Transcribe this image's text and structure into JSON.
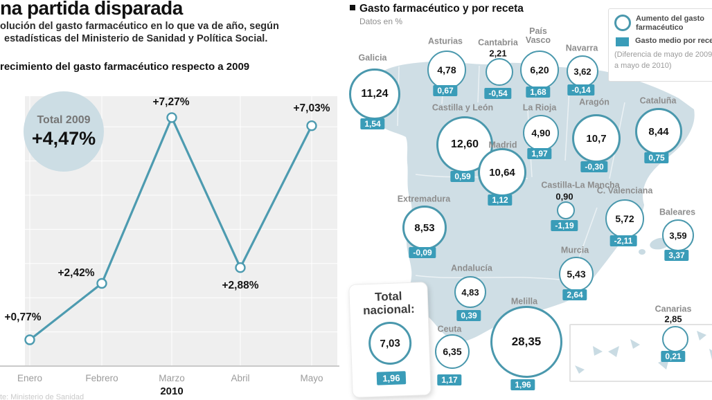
{
  "header": {
    "title": "na partida disparada",
    "subtitle_line1": "olución del gasto farmacéutico en lo que va de año, según",
    "subtitle_line2": "estadísticas del Ministerio de Sanidad y Política Social."
  },
  "line_chart": {
    "heading": "recimiento del gasto farmacéutico respecto a 2009",
    "total_circle": {
      "label": "Total 2009",
      "value": "+4,47%"
    },
    "point_labels": [
      "+0,77%",
      "+2,42%",
      "+7,27%",
      "+2,88%",
      "+7,03%"
    ],
    "year": "2010",
    "source_partial": "te: Ministerio de Sanidad"
  },
  "map": {
    "heading": "Gasto farmacéutico y por receta",
    "subheading": "Datos en %",
    "legend": {
      "item_circle": "Aumento del gasto farmacéutico",
      "item_square": "Gasto medio por receta",
      "note_line1": "(Diferencia de mayo de 2009",
      "note_line2": "a mayo de 2010)"
    },
    "total_box": {
      "label": "Total nacional:",
      "value": "7,03",
      "badge": "1,96"
    },
    "regions": [
      {
        "key": "galicia",
        "name": "Galicia",
        "value": "11,24",
        "badge": "1,54"
      },
      {
        "key": "asturias",
        "name": "Asturias",
        "value": "4,78",
        "badge": "0,67"
      },
      {
        "key": "cantabria",
        "name": "Cantabria",
        "value": "2,21",
        "badge": "-0,54",
        "value_above": true
      },
      {
        "key": "pais-vasco",
        "name": "País\nVasco",
        "value": "6,20",
        "badge": "1,68"
      },
      {
        "key": "navarra",
        "name": "Navarra",
        "value": "3,62",
        "badge": "-0,14"
      },
      {
        "key": "la-rioja",
        "name": "La Rioja",
        "value": "4,90",
        "badge": "1,97"
      },
      {
        "key": "aragon",
        "name": "Aragón",
        "value": "10,7",
        "badge": "-0,30"
      },
      {
        "key": "cataluna",
        "name": "Cataluña",
        "value": "8,44",
        "badge": "0,75"
      },
      {
        "key": "castilla-y-leon",
        "name": "Castilla y León",
        "value": "12,60",
        "badge": "0,59"
      },
      {
        "key": "madrid",
        "name": "Madrid",
        "value": "10,64",
        "badge": "1,12"
      },
      {
        "key": "castilla-la-mancha",
        "name": "Castilla-La Mancha",
        "value": "0,90",
        "badge": "-1,19",
        "value_above": true
      },
      {
        "key": "extremadura",
        "name": "Extremadura",
        "value": "8,53",
        "badge": "-0,09"
      },
      {
        "key": "c-valenciana",
        "name": "C. Valenciana",
        "value": "5,72",
        "badge": "-2,11"
      },
      {
        "key": "baleares",
        "name": "Baleares",
        "value": "3,59",
        "badge": "3,37"
      },
      {
        "key": "murcia",
        "name": "Murcia",
        "value": "5,43",
        "badge": "2,64"
      },
      {
        "key": "andalucia",
        "name": "Andalucía",
        "value": "4,83",
        "badge": "0,39"
      },
      {
        "key": "ceuta",
        "name": "Ceuta",
        "value": "6,35",
        "badge": "1,17"
      },
      {
        "key": "melilla",
        "name": "Melilla",
        "value": "28,35",
        "badge": "1,96"
      },
      {
        "key": "canarias",
        "name": "Canarias",
        "value": "2,85",
        "badge": "0,21",
        "value_above": true
      }
    ]
  },
  "chart_data": [
    {
      "type": "line",
      "title": "Crecimiento del gasto farmacéutico respecto a 2009",
      "x": [
        "Enero",
        "Febrero",
        "Marzo",
        "Abril",
        "Mayo"
      ],
      "values": [
        0.77,
        2.42,
        7.27,
        2.88,
        7.03
      ],
      "unit": "%",
      "xlabel": "2010",
      "ylim": [
        0,
        8
      ],
      "grid": true,
      "annotation": "Total 2009: +4,47%"
    },
    {
      "type": "map",
      "title": "Gasto farmacéutico y por receta (datos en %)",
      "series": [
        "Aumento del gasto farmacéutico",
        "Gasto medio por receta (diferencia de mayo de 2009 a mayo de 2010)"
      ],
      "rows": [
        [
          "Galicia",
          11.24,
          1.54
        ],
        [
          "Asturias",
          4.78,
          0.67
        ],
        [
          "Cantabria",
          2.21,
          -0.54
        ],
        [
          "País Vasco",
          6.2,
          1.68
        ],
        [
          "Navarra",
          3.62,
          -0.14
        ],
        [
          "La Rioja",
          4.9,
          1.97
        ],
        [
          "Aragón",
          10.7,
          -0.3
        ],
        [
          "Cataluña",
          8.44,
          0.75
        ],
        [
          "Castilla y León",
          12.6,
          0.59
        ],
        [
          "Madrid",
          10.64,
          1.12
        ],
        [
          "Castilla-La Mancha",
          0.9,
          -1.19
        ],
        [
          "Extremadura",
          8.53,
          -0.09
        ],
        [
          "C. Valenciana",
          5.72,
          -2.11
        ],
        [
          "Baleares",
          3.59,
          3.37
        ],
        [
          "Murcia",
          5.43,
          2.64
        ],
        [
          "Andalucía",
          4.83,
          0.39
        ],
        [
          "Ceuta",
          6.35,
          1.17
        ],
        [
          "Melilla",
          28.35,
          1.96
        ],
        [
          "Canarias",
          2.85,
          0.21
        ],
        [
          "Total nacional",
          7.03,
          1.96
        ]
      ]
    }
  ],
  "colors": {
    "teal_badge": "#3a9cb8",
    "circle_ring": "#4a98ad",
    "line": "#4d9bb0",
    "map_fill": "#cfdee5",
    "plot_bg": "#efefef",
    "total_circle_fill": "#ccdde4"
  }
}
